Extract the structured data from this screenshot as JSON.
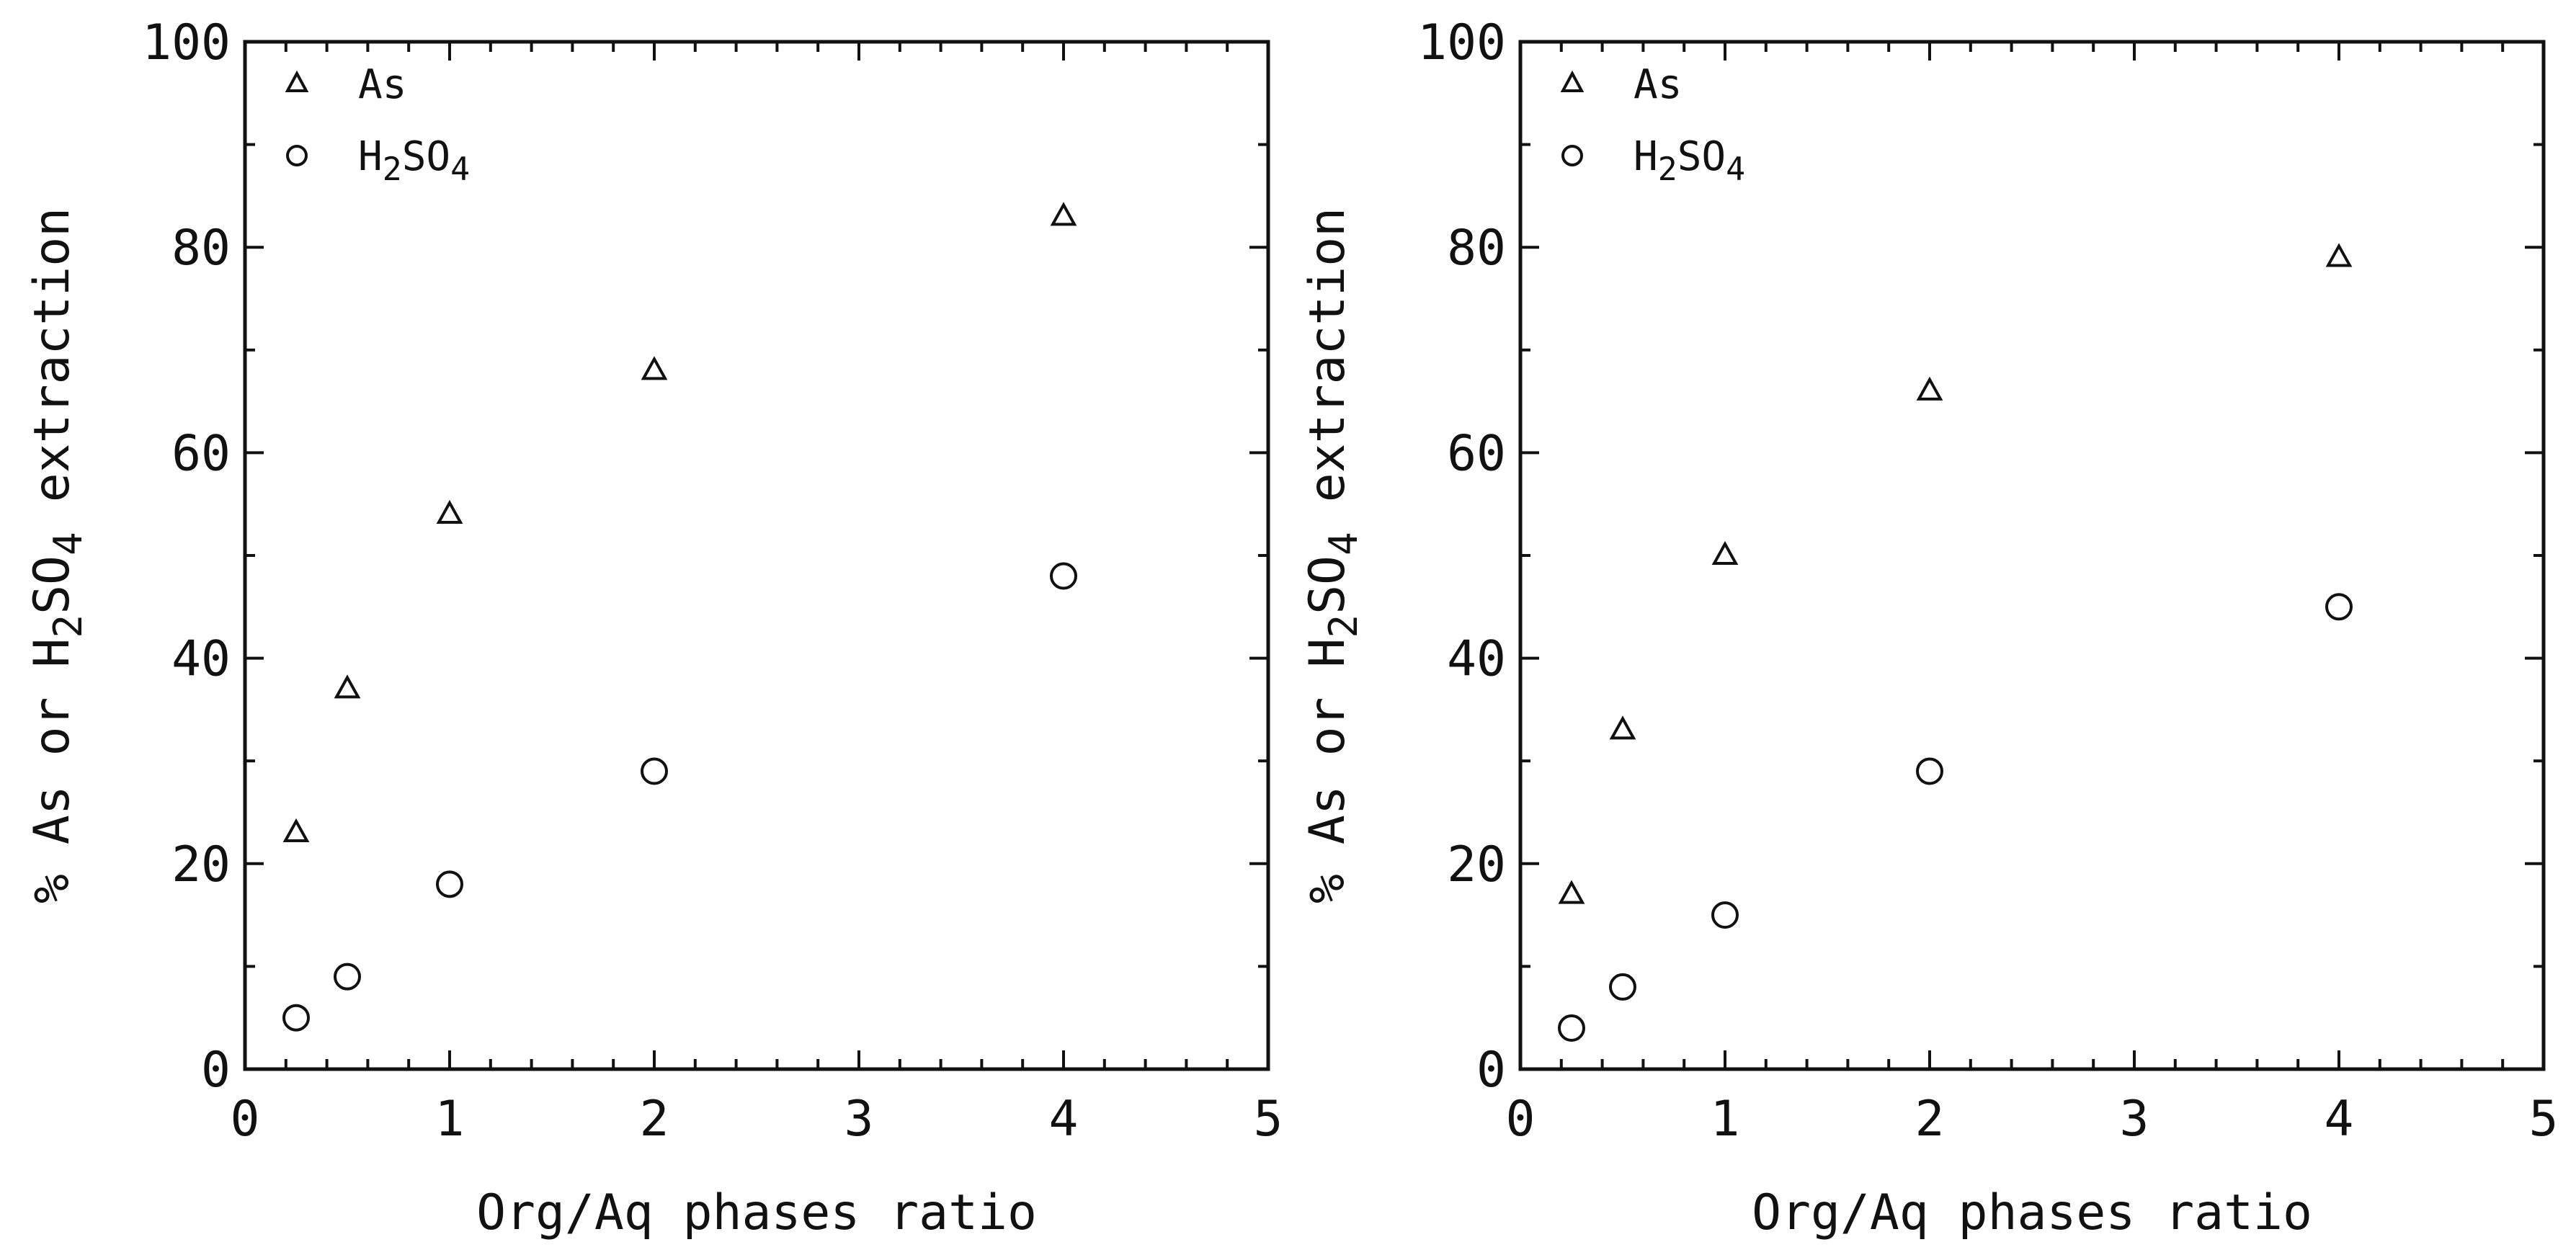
{
  "chart_data": [
    {
      "type": "scatter",
      "title": "",
      "xlabel": "Org/Aq phases ratio",
      "ylabel_parts": [
        "% As or H",
        "2",
        "SO",
        "4",
        " extraction"
      ],
      "xlim": [
        0,
        5
      ],
      "ylim": [
        0,
        100
      ],
      "x_ticks": [
        "0",
        "1",
        "2",
        "3",
        "4",
        "5"
      ],
      "y_ticks": [
        "0",
        "20",
        "40",
        "60",
        "80",
        "100"
      ],
      "grid": false,
      "legend_position": "top-left",
      "series": [
        {
          "name": "As",
          "marker": "triangle",
          "points": [
            [
              0.25,
              23
            ],
            [
              0.5,
              37
            ],
            [
              1,
              54
            ],
            [
              2,
              68
            ],
            [
              4,
              83
            ]
          ]
        },
        {
          "name_parts": [
            "H",
            "2",
            "SO",
            "4"
          ],
          "marker": "circle",
          "points": [
            [
              0.25,
              5
            ],
            [
              0.5,
              9
            ],
            [
              1,
              18
            ],
            [
              2,
              29
            ],
            [
              4,
              48
            ]
          ]
        }
      ]
    },
    {
      "type": "scatter",
      "title": "",
      "xlabel": "Org/Aq phases ratio",
      "ylabel_parts": [
        "% As or H",
        "2",
        "SO",
        "4",
        " extraction"
      ],
      "xlim": [
        0,
        5
      ],
      "ylim": [
        0,
        100
      ],
      "x_ticks": [
        "0",
        "1",
        "2",
        "3",
        "4",
        "5"
      ],
      "y_ticks": [
        "0",
        "20",
        "40",
        "60",
        "80",
        "100"
      ],
      "grid": false,
      "legend_position": "top-left",
      "series": [
        {
          "name": "As",
          "marker": "triangle",
          "points": [
            [
              0.25,
              17
            ],
            [
              0.5,
              33
            ],
            [
              1,
              50
            ],
            [
              2,
              66
            ],
            [
              4,
              79
            ]
          ]
        },
        {
          "name_parts": [
            "H",
            "2",
            "SO",
            "4"
          ],
          "marker": "circle",
          "points": [
            [
              0.25,
              4
            ],
            [
              0.5,
              8
            ],
            [
              1,
              15
            ],
            [
              2,
              29
            ],
            [
              4,
              45
            ]
          ]
        }
      ]
    }
  ]
}
